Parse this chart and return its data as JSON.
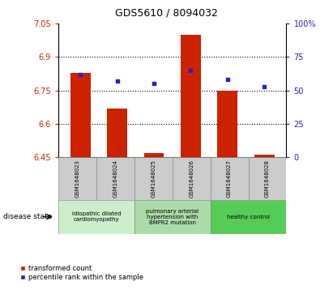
{
  "title": "GDS5610 / 8094032",
  "samples": [
    "GSM1648023",
    "GSM1648024",
    "GSM1648025",
    "GSM1648026",
    "GSM1648027",
    "GSM1648028"
  ],
  "transformed_count": [
    6.83,
    6.67,
    6.47,
    7.0,
    6.75,
    6.46
  ],
  "percentile_rank": [
    62,
    57,
    55,
    65,
    58,
    53
  ],
  "ylim_left": [
    6.45,
    7.05
  ],
  "ylim_right": [
    0,
    100
  ],
  "yticks_left": [
    6.45,
    6.6,
    6.75,
    6.9,
    7.05
  ],
  "ytick_labels_left": [
    "6.45",
    "6.6",
    "6.75",
    "6.9",
    "7.05"
  ],
  "yticks_right": [
    0,
    25,
    50,
    75,
    100
  ],
  "ytick_labels_right": [
    "0",
    "25",
    "50",
    "75",
    "100%"
  ],
  "bar_color": "#cc2200",
  "dot_color": "#2222cc",
  "groups": [
    {
      "label": "idiopathic dilated\ncardiomyopathy",
      "n_samples": 2,
      "color": "#cceecc"
    },
    {
      "label": "pulmonary arterial\nhypertension with\nBMPR2 mutation",
      "n_samples": 2,
      "color": "#aaddaa"
    },
    {
      "label": "healthy control",
      "n_samples": 2,
      "color": "#55cc55"
    }
  ],
  "disease_state_label": "disease state",
  "legend_bar_label": "transformed count",
  "legend_dot_label": "percentile rank within the sample",
  "bar_width": 0.55,
  "base_value": 6.45,
  "grid_yticks": [
    6.6,
    6.75,
    6.9
  ],
  "sample_box_color": "#cccccc",
  "sample_box_edge": "#888888"
}
